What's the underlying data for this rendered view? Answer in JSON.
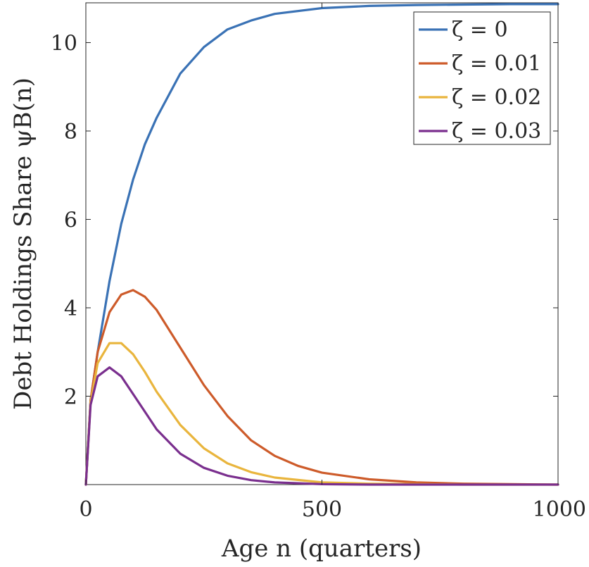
{
  "chart_data": {
    "type": "line",
    "xlabel": "Age n (quarters)",
    "ylabel": "Debt Holdings Share ψB(n)",
    "xlim": [
      0,
      1000
    ],
    "ylim": [
      0,
      10.9
    ],
    "xticks": [
      0,
      500,
      1000
    ],
    "yticks": [
      2,
      4,
      6,
      8,
      10
    ],
    "grid": false,
    "legend_position": "top-right",
    "series": [
      {
        "name": "ζ = 0",
        "color": "#3a72b5",
        "x": [
          0,
          10,
          25,
          50,
          75,
          100,
          125,
          150,
          200,
          250,
          300,
          350,
          400,
          500,
          600,
          700,
          800,
          900,
          1000
        ],
        "y": [
          0,
          1.9,
          3.0,
          4.6,
          5.9,
          6.9,
          7.7,
          8.3,
          9.3,
          9.9,
          10.3,
          10.5,
          10.65,
          10.78,
          10.83,
          10.85,
          10.86,
          10.87,
          10.87
        ]
      },
      {
        "name": "ζ = 0.01",
        "color": "#cd5b2a",
        "x": [
          0,
          10,
          25,
          50,
          75,
          100,
          125,
          150,
          200,
          250,
          300,
          350,
          400,
          450,
          500,
          600,
          700,
          800,
          900,
          1000
        ],
        "y": [
          0,
          1.9,
          3.0,
          3.9,
          4.3,
          4.4,
          4.25,
          3.95,
          3.1,
          2.25,
          1.55,
          1.0,
          0.65,
          0.42,
          0.27,
          0.12,
          0.05,
          0.02,
          0.01,
          0.0
        ]
      },
      {
        "name": "ζ = 0.02",
        "color": "#e9b53d",
        "x": [
          0,
          10,
          25,
          50,
          75,
          100,
          125,
          150,
          200,
          250,
          300,
          350,
          400,
          500,
          600,
          700,
          800,
          1000
        ],
        "y": [
          0,
          1.85,
          2.75,
          3.2,
          3.2,
          2.95,
          2.55,
          2.1,
          1.35,
          0.82,
          0.48,
          0.28,
          0.16,
          0.05,
          0.02,
          0.01,
          0.0,
          0.0
        ]
      },
      {
        "name": "ζ = 0.03",
        "color": "#7a2f8e",
        "x": [
          0,
          10,
          25,
          50,
          75,
          100,
          125,
          150,
          200,
          250,
          300,
          350,
          400,
          500,
          600,
          800,
          1000
        ],
        "y": [
          0,
          1.8,
          2.45,
          2.65,
          2.45,
          2.05,
          1.65,
          1.25,
          0.7,
          0.38,
          0.2,
          0.1,
          0.05,
          0.01,
          0.0,
          0.0,
          0.0
        ]
      }
    ]
  }
}
